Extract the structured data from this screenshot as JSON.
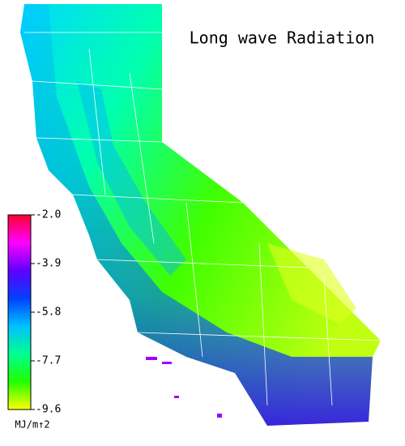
{
  "title": "Long wave Radiation",
  "colorbar": {
    "lim": [
      -2.0,
      -9.6
    ],
    "ticks": [
      {
        "value": -2.0,
        "label": "-2.0"
      },
      {
        "value": -3.9,
        "label": "-3.9"
      },
      {
        "value": -5.8,
        "label": "-5.8"
      },
      {
        "value": -7.7,
        "label": "-7.7"
      },
      {
        "value": -9.6,
        "label": "-9.6"
      }
    ],
    "colors": [
      "#ff0030",
      "#ff00ff",
      "#6000ff",
      "#0040ff",
      "#00c0ff",
      "#00ff90",
      "#20ff00",
      "#ffff00"
    ],
    "unit": "MJ/m↑2"
  }
}
